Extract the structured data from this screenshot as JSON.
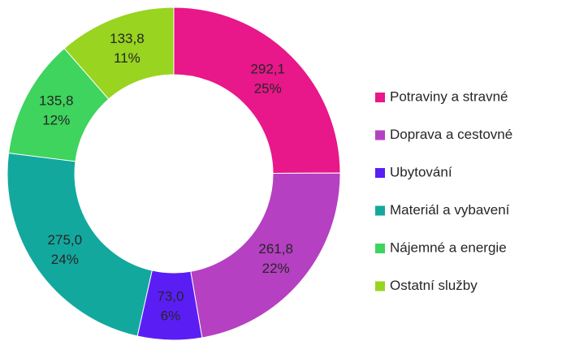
{
  "chart_data": {
    "type": "donut",
    "categories": [
      "Potraviny a stravné",
      "Doprava a cestovné",
      "Ubytování",
      "Materiál a vybavení",
      "Nájemné a energie",
      "Ostatní služby"
    ],
    "values": [
      292.1,
      261.8,
      73.0,
      275.0,
      135.8,
      133.8
    ],
    "value_labels": [
      "292,1",
      "261,8",
      "73,0",
      "275,0",
      "135,8",
      "133,8"
    ],
    "percent_values": [
      25,
      22,
      6,
      24,
      12,
      11
    ],
    "percent_labels": [
      "25%",
      "22%",
      "6%",
      "24%",
      "12%",
      "11%"
    ],
    "colors": [
      "#e8178a",
      "#b540c1",
      "#5a1ef5",
      "#13a89e",
      "#3ed45e",
      "#98d420"
    ],
    "legend": "right"
  }
}
